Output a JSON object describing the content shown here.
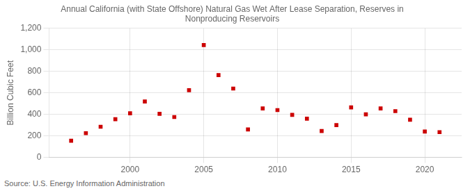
{
  "chart_data": {
    "type": "scatter",
    "title": "Annual California (with State Offshore) Natural Gas Wet After Lease Separation, Reserves in\nNonproducing Reservoirs",
    "ylabel": "Billion Cubic Feet",
    "annotation": "Source: U.S. Energy Information Administration",
    "x": [
      1996,
      1997,
      1998,
      1999,
      2000,
      2001,
      2002,
      2003,
      2004,
      2005,
      2006,
      2007,
      2008,
      2009,
      2010,
      2011,
      2012,
      2013,
      2014,
      2015,
      2016,
      2017,
      2018,
      2019,
      2020,
      2021
    ],
    "values": [
      155,
      225,
      285,
      355,
      410,
      520,
      405,
      375,
      625,
      1045,
      765,
      640,
      260,
      455,
      440,
      395,
      360,
      245,
      300,
      465,
      400,
      455,
      430,
      350,
      240,
      235
    ],
    "color": "#cc0000",
    "marker": "square",
    "grid": true,
    "xlim": [
      1994.5,
      2022.5
    ],
    "xticks": [
      2000,
      2005,
      2010,
      2015,
      2020
    ],
    "ylim": [
      0,
      1200
    ],
    "yticks": [
      0,
      200,
      400,
      600,
      {
        "value": 800,
        "label": "800"
      },
      {
        "value": 1000,
        "label": "1,000"
      },
      {
        "value": 1200,
        "label": "1,200"
      }
    ]
  }
}
